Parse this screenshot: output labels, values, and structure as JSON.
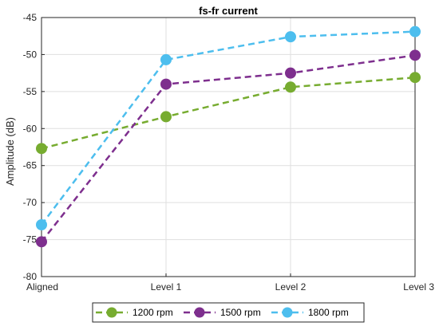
{
  "chart_data": {
    "type": "line",
    "title": "fs-fr current",
    "xlabel": "",
    "ylabel": "Amplitude (dB)",
    "categories": [
      "Aligned",
      "Level 1",
      "Level 2",
      "Level 3"
    ],
    "ylim": [
      -80,
      -45
    ],
    "yticks": [
      -80,
      -75,
      -70,
      -65,
      -60,
      -55,
      -50,
      -45
    ],
    "grid": true,
    "legend_position": "bottom",
    "series": [
      {
        "name": "1200 rpm",
        "color": "#77AC30",
        "values": [
          -62.7,
          -58.4,
          -54.4,
          -53.1
        ]
      },
      {
        "name": "1500 rpm",
        "color": "#7E2F8E",
        "values": [
          -75.3,
          -54.0,
          -52.5,
          -50.1
        ]
      },
      {
        "name": "1800 rpm",
        "color": "#4DBEEE",
        "values": [
          -73.0,
          -50.7,
          -47.6,
          -46.9
        ]
      }
    ]
  }
}
